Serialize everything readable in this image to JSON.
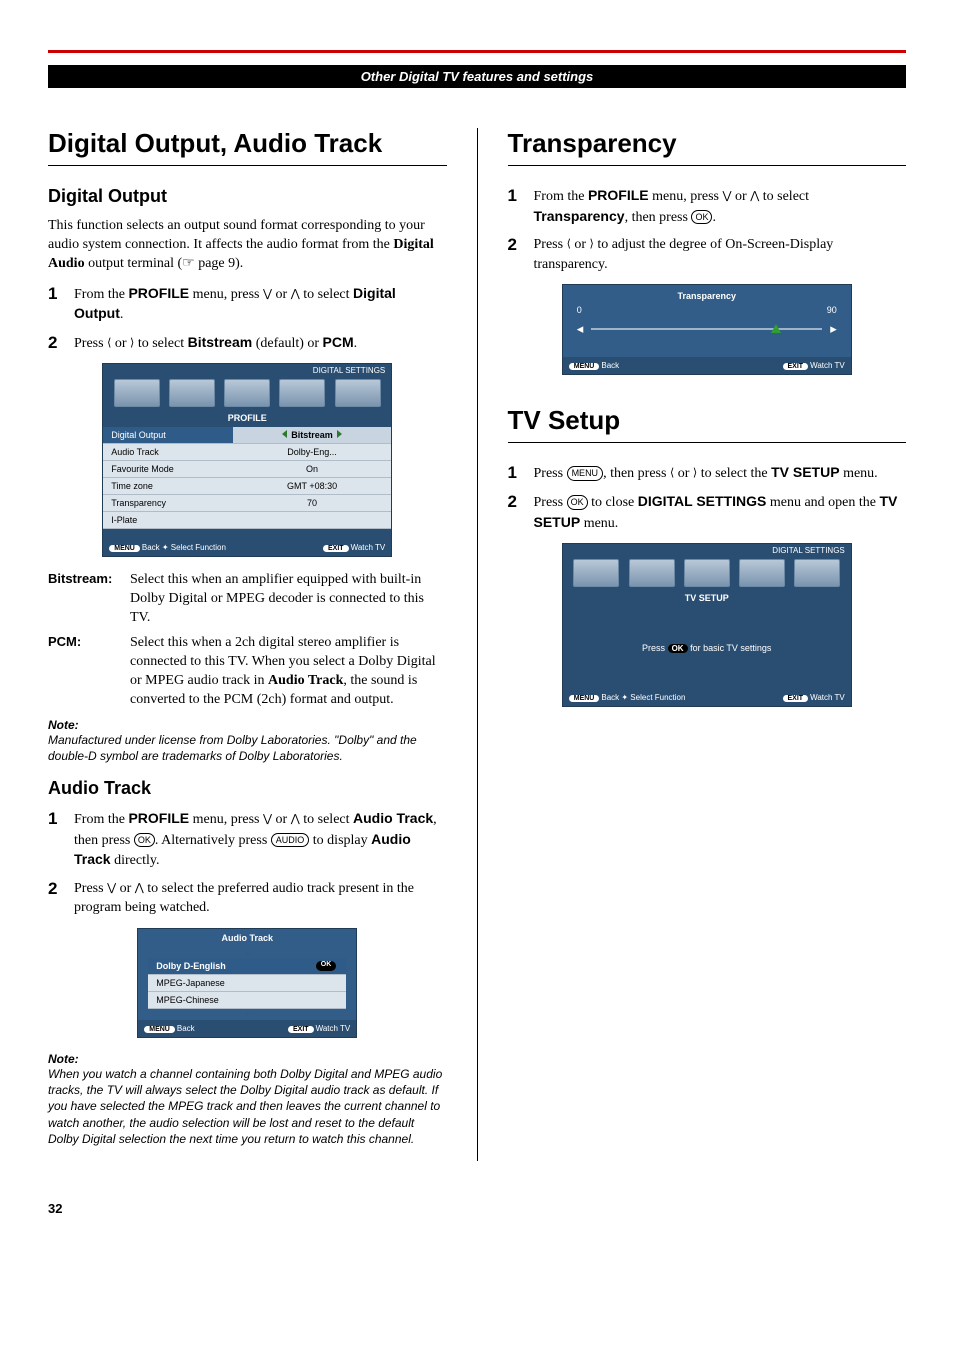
{
  "header": "Other Digital TV features and settings",
  "pageNum": "32",
  "left": {
    "h1": "Digital Output, Audio Track",
    "digitalOutput": {
      "h2": "Digital Output",
      "intro": "This function selects an output sound format corresponding to your audio system connection. It affects the audio format from the ",
      "introBold": "Digital Audio",
      "introTail": " output terminal (☞ page 9).",
      "step1a": "From the ",
      "step1b": "PROFILE",
      "step1c": " menu, press ",
      "step1d": " or ",
      "step1e": " to select ",
      "step1f": "Digital Output",
      "step1g": ".",
      "step2a": "Press ",
      "step2b": " or ",
      "step2c": " to select ",
      "step2d": "Bitstream",
      "step2e": " (default) or ",
      "step2f": "PCM",
      "step2g": ".",
      "osd": {
        "topLabel": "DIGITAL SETTINGS",
        "title": "PROFILE",
        "rows": [
          [
            "Digital Output",
            "Bitstream"
          ],
          [
            "Audio Track",
            "Dolby-Eng..."
          ],
          [
            "Favourite Mode",
            "On"
          ],
          [
            "Time zone",
            "GMT +08:30"
          ],
          [
            "Transparency",
            "70"
          ],
          [
            "I-Plate",
            ""
          ]
        ],
        "footLeft": "Back ✦ Select Function",
        "footRight": "Watch TV",
        "menuPill": "MENU",
        "exitPill": "EXIT"
      },
      "bitstreamTerm": "Bitstream:",
      "bitstreamText": "Select this when an amplifier equipped with built-in Dolby Digital or MPEG decoder is connected to this TV.",
      "pcmTerm": "PCM:",
      "pcmText1": "Select this when a 2ch digital stereo amplifier is connected to this TV. When you select a Dolby Digital or MPEG audio track in ",
      "pcmBold": "Audio Track",
      "pcmText2": ", the sound is converted to the PCM (2ch) format and output.",
      "noteLabel": "Note:",
      "noteText": "Manufactured under license from Dolby Laboratories. \"Dolby\" and the double-D symbol are trademarks of Dolby Laboratories."
    },
    "audioTrack": {
      "h2": "Audio Track",
      "step1a": "From the ",
      "step1b": "PROFILE",
      "step1c": " menu, press ",
      "step1d": " or ",
      "step1e": " to select ",
      "step1f": "Audio Track",
      "step1g": ", then press ",
      "step1h": ". Alternatively press ",
      "step1i": " to display ",
      "step1j": "Audio Track",
      "step1k": " directly.",
      "step2a": "Press ",
      "step2b": " or ",
      "step2c": " to select the preferred audio track present in the program being watched.",
      "osd": {
        "title": "Audio Track",
        "items": [
          "Dolby D-English",
          "MPEG-Japanese",
          "MPEG-Chinese"
        ],
        "okPill": "OK",
        "menuPill": "MENU",
        "exitPill": "EXIT",
        "footLeft": "Back",
        "footRight": "Watch TV"
      },
      "noteLabel": "Note:",
      "noteText": "When you watch a channel containing both Dolby Digital and MPEG audio tracks, the TV will always select the Dolby Digital audio track as default. If you have selected the MPEG track and then leaves the current channel to watch another, the audio selection will be lost and reset to the default Dolby Digital selection the next time you return to watch this channel."
    }
  },
  "right": {
    "transparency": {
      "h1": "Transparency",
      "step1a": "From the ",
      "step1b": "PROFILE",
      "step1c": " menu, press ",
      "step1d": " or ",
      "step1e": " to select ",
      "step1f": "Transparency",
      "step1g": ", then press ",
      "step1h": ".",
      "step2a": "Press ",
      "step2b": " or ",
      "step2c": " to adjust the degree of On-Screen-Display transparency.",
      "osd": {
        "title": "Transparency",
        "min": "0",
        "max": "90",
        "thumbPct": 78,
        "menuPill": "MENU",
        "exitPill": "EXIT",
        "footLeft": "Back",
        "footRight": "Watch TV"
      }
    },
    "tvsetup": {
      "h1": "TV Setup",
      "step1a": "Press ",
      "step1b": ", then press ",
      "step1c": " or ",
      "step1d": " to select the ",
      "step1e": "TV SETUP",
      "step1f": " menu.",
      "step2a": "Press ",
      "step2b": " to close ",
      "step2c": "DIGITAL SETTINGS",
      "step2d": " menu and open the ",
      "step2e": "TV SETUP",
      "step2f": " menu.",
      "osd": {
        "topLabel": "DIGITAL SETTINGS",
        "title": "TV SETUP",
        "bodyPre": "Press ",
        "bodyPost": " for basic TV settings",
        "okPill": "OK",
        "menuPill": "MENU",
        "exitPill": "EXIT",
        "footLeft": "Back ✦ Select Function",
        "footRight": "Watch TV"
      }
    }
  }
}
